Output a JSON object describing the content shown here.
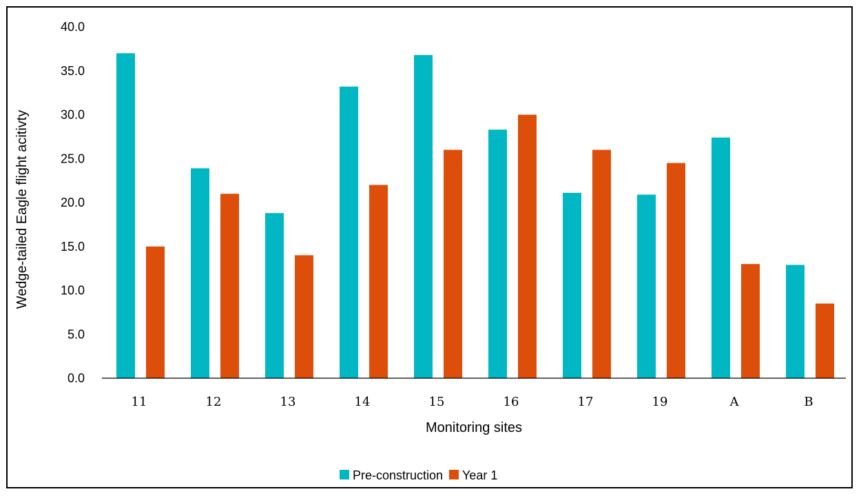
{
  "chart_data": {
    "type": "bar",
    "title": "",
    "xlabel": "Monitoring sites",
    "ylabel": "Wedge-tailed Eagle flight acitivty",
    "categories": [
      "11",
      "12",
      "13",
      "14",
      "15",
      "16",
      "17",
      "19",
      "A",
      "B"
    ],
    "ylim": [
      0,
      40
    ],
    "yticks": [
      "0.0",
      "5.0",
      "10.0",
      "15.0",
      "20.0",
      "25.0",
      "30.0",
      "35.0",
      "40.0"
    ],
    "grid": false,
    "legend_position": "bottom",
    "series": [
      {
        "name": "Pre-construction",
        "color": "#00B7C3",
        "values": [
          37.0,
          23.9,
          18.8,
          33.2,
          36.8,
          28.3,
          21.1,
          20.9,
          27.4,
          12.9
        ]
      },
      {
        "name": "Year 1",
        "color": "#DD4E0A",
        "values": [
          15.0,
          21.0,
          14.0,
          22.0,
          26.0,
          30.0,
          26.0,
          24.5,
          13.0,
          8.5
        ]
      }
    ]
  }
}
